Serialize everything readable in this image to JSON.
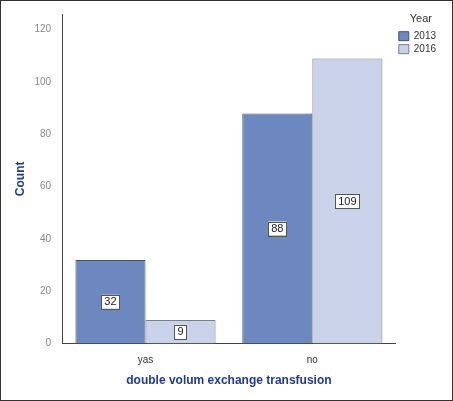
{
  "chart_data": {
    "type": "bar",
    "x_label": "double volum exchange transfusion",
    "y_label": "Count",
    "legend_title": "Year",
    "categories": [
      "yas",
      "no"
    ],
    "series": [
      {
        "name": "2013",
        "color": "#6d88bf",
        "values": [
          32,
          88
        ]
      },
      {
        "name": "2016",
        "color": "#c9d2e9",
        "values": [
          9,
          109
        ]
      }
    ],
    "ylim": [
      0,
      126
    ],
    "yticks": [
      0,
      20,
      40,
      60,
      80,
      100,
      120
    ],
    "grid": false,
    "legend": "top-right",
    "data_labels": true
  }
}
